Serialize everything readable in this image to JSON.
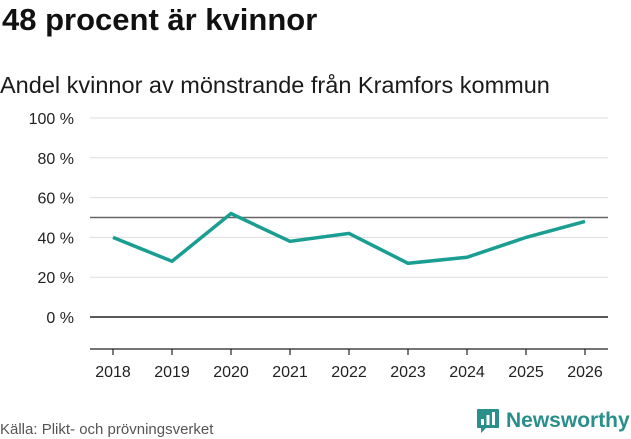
{
  "header": {
    "headline": "48 procent är kvinnor",
    "subtitle": "Andel kvinnor av mönstrande från Kramfors kommun"
  },
  "footer": {
    "source": "Källa: Plikt- och prövningsverket",
    "brand": "Newsworthy"
  },
  "colors": {
    "line": "#1a9e91",
    "reference_line": "#666666",
    "grid": "#dddddd",
    "zero_line": "#222222",
    "brand": "#2a8f8a"
  },
  "chart_data": {
    "type": "line",
    "title": "Andel kvinnor av mönstrande från Kramfors kommun",
    "xlabel": "",
    "ylabel": "",
    "categories": [
      "2018",
      "2019",
      "2020",
      "2021",
      "2022",
      "2023",
      "2024",
      "2025",
      "2026"
    ],
    "series": [
      {
        "name": "Andel kvinnor",
        "values": [
          40,
          28,
          52,
          38,
          42,
          27,
          30,
          40,
          48
        ]
      }
    ],
    "reference_line": 50,
    "ylim": [
      -15,
      100
    ],
    "yticks": [
      0,
      20,
      40,
      60,
      80,
      100
    ],
    "ytick_labels": [
      "0 %",
      "20 %",
      "40 %",
      "60 %",
      "80 %",
      "100 %"
    ],
    "grid": true,
    "legend": "none"
  }
}
